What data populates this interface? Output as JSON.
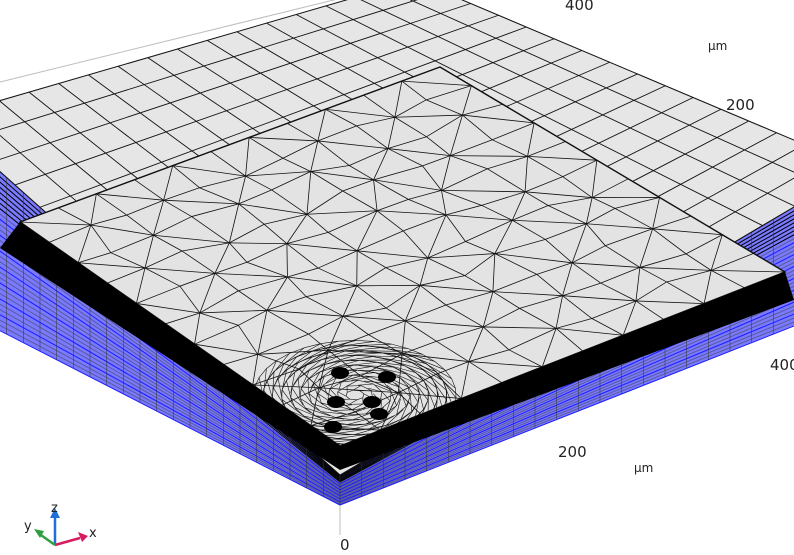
{
  "axes": {
    "ruler_labels": {
      "top": "400",
      "right_upper": "200",
      "right_edge": "400",
      "lower": "200",
      "origin": "0"
    },
    "unit_top": "µm",
    "unit_bottom": "µm"
  },
  "triad": {
    "x": "x",
    "y": "y",
    "z": "z"
  },
  "colors": {
    "background": "#ffffff",
    "surface": "#e6e6e6",
    "mesh": "#111111",
    "layer_blue": "#1a1aff",
    "axis_x": "#d81b60",
    "axis_y": "#2e9e3e",
    "axis_z": "#1e6fd9"
  },
  "icons": [
    "coordinate-triad-icon"
  ]
}
